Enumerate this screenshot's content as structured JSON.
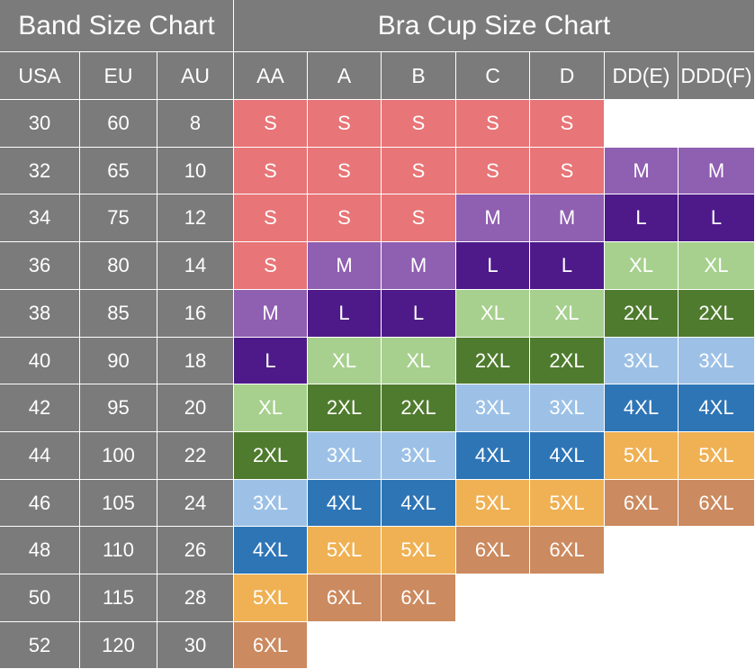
{
  "titles": {
    "band": "Band Size Chart",
    "cup": "Bra Cup Size Chart"
  },
  "band_headers": [
    "USA",
    "EU",
    "AU"
  ],
  "cup_headers": [
    "AA",
    "A",
    "B",
    "C",
    "D",
    "DD(E)",
    "DDD(F)"
  ],
  "rows": [
    {
      "usa": "30",
      "eu": "60",
      "au": "8",
      "sizes": [
        "S",
        "S",
        "S",
        "S",
        "S",
        "",
        ""
      ]
    },
    {
      "usa": "32",
      "eu": "65",
      "au": "10",
      "sizes": [
        "S",
        "S",
        "S",
        "S",
        "S",
        "M",
        "M"
      ]
    },
    {
      "usa": "34",
      "eu": "75",
      "au": "12",
      "sizes": [
        "S",
        "S",
        "S",
        "M",
        "M",
        "L",
        "L"
      ]
    },
    {
      "usa": "36",
      "eu": "80",
      "au": "14",
      "sizes": [
        "S",
        "M",
        "M",
        "L",
        "L",
        "XL",
        "XL"
      ]
    },
    {
      "usa": "38",
      "eu": "85",
      "au": "16",
      "sizes": [
        "M",
        "L",
        "L",
        "XL",
        "XL",
        "2XL",
        "2XL"
      ]
    },
    {
      "usa": "40",
      "eu": "90",
      "au": "18",
      "sizes": [
        "L",
        "XL",
        "XL",
        "2XL",
        "2XL",
        "3XL",
        "3XL"
      ]
    },
    {
      "usa": "42",
      "eu": "95",
      "au": "20",
      "sizes": [
        "XL",
        "2XL",
        "2XL",
        "3XL",
        "3XL",
        "4XL",
        "4XL"
      ]
    },
    {
      "usa": "44",
      "eu": "100",
      "au": "22",
      "sizes": [
        "2XL",
        "3XL",
        "3XL",
        "4XL",
        "4XL",
        "5XL",
        "5XL"
      ]
    },
    {
      "usa": "46",
      "eu": "105",
      "au": "24",
      "sizes": [
        "3XL",
        "4XL",
        "4XL",
        "5XL",
        "5XL",
        "6XL",
        "6XL"
      ]
    },
    {
      "usa": "48",
      "eu": "110",
      "au": "26",
      "sizes": [
        "4XL",
        "5XL",
        "5XL",
        "6XL",
        "6XL",
        "",
        ""
      ]
    },
    {
      "usa": "50",
      "eu": "115",
      "au": "28",
      "sizes": [
        "5XL",
        "6XL",
        "6XL",
        "",
        "",
        "",
        ""
      ]
    },
    {
      "usa": "52",
      "eu": "120",
      "au": "30",
      "sizes": [
        "6XL",
        "",
        "",
        "",
        "",
        "",
        ""
      ]
    }
  ],
  "colors": {
    "header_bg": "#7b7b7b",
    "S": "#e87577",
    "M": "#8f5fb1",
    "L": "#4e1a8a",
    "XL": "#a7d08e",
    "2XL": "#4f7b2e",
    "3XL": "#9dc1e6",
    "4XL": "#2e75b6",
    "5XL": "#efb154",
    "6XL": "#cb8a5f"
  }
}
